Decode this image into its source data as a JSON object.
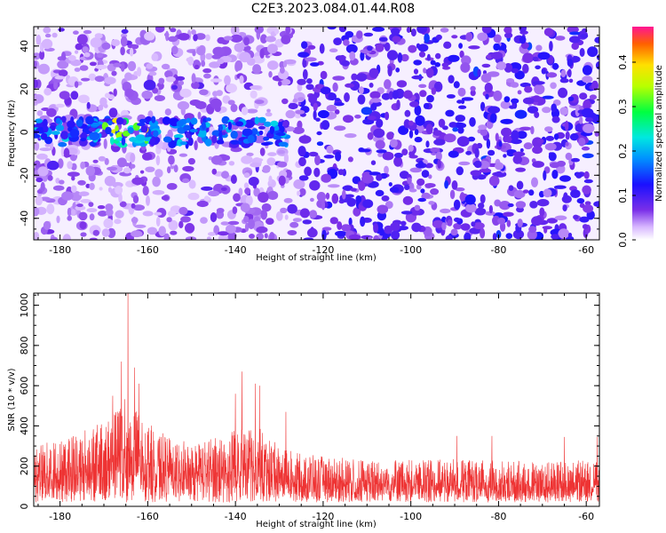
{
  "chart_data": [
    {
      "type": "heatmap",
      "title": "C2E3.2023.084.01.44.R08",
      "xlabel": "Height of straight line (km)",
      "ylabel": "Frequency (Hz)",
      "xlim": [
        -186,
        -57
      ],
      "ylim": [
        -50,
        49
      ],
      "xticks": [
        "-180",
        "-160",
        "-140",
        "-120",
        "-100",
        "-80",
        "-60"
      ],
      "yticks": [
        "40",
        "20",
        "0",
        "-20",
        "-40"
      ],
      "colorbar": {
        "label": "Normalized spectral amplitude",
        "range": [
          0,
          0.48
        ],
        "ticks": [
          "0.0",
          "0.1",
          "0.2",
          "0.3",
          "0.4"
        ]
      },
      "features": [
        {
          "description": "strong band near 0 Hz",
          "x_range": [
            -186,
            -128
          ],
          "y_center": 0,
          "peak_amplitude": 0.4
        }
      ]
    },
    {
      "type": "line",
      "xlabel": "Height of straight line (km)",
      "ylabel": "SNR (10 * v/v)",
      "xlim": [
        -186,
        -57
      ],
      "ylim": [
        0,
        1060
      ],
      "xticks": [
        "-180",
        "-160",
        "-140",
        "-120",
        "-100",
        "-80",
        "-60"
      ],
      "yticks": [
        "0",
        "200",
        "400",
        "600",
        "800",
        "1000"
      ],
      "color": "#ee3333",
      "envelope": {
        "x": [
          -186,
          -180,
          -175,
          -170,
          -167,
          -165,
          -163,
          -160,
          -155,
          -150,
          -145,
          -140,
          -135,
          -130,
          -125,
          -120,
          -110,
          -100,
          -90,
          -80,
          -70,
          -60,
          -57
        ],
        "y": [
          300,
          340,
          380,
          420,
          480,
          560,
          500,
          420,
          340,
          320,
          340,
          380,
          400,
          300,
          260,
          250,
          230,
          230,
          235,
          230,
          225,
          230,
          230
        ]
      },
      "peaks": [
        {
          "x": -164.5,
          "y": 1060
        },
        {
          "x": -166,
          "y": 720
        },
        {
          "x": -163,
          "y": 690
        },
        {
          "x": -162,
          "y": 610
        },
        {
          "x": -138.5,
          "y": 670
        },
        {
          "x": -135.5,
          "y": 610
        },
        {
          "x": -134.5,
          "y": 600
        },
        {
          "x": -140,
          "y": 560
        },
        {
          "x": -128.5,
          "y": 470
        },
        {
          "x": -168,
          "y": 550
        },
        {
          "x": -89.5,
          "y": 350
        },
        {
          "x": -81.5,
          "y": 350
        },
        {
          "x": -65,
          "y": 345
        },
        {
          "x": -57.5,
          "y": 345
        }
      ]
    }
  ]
}
